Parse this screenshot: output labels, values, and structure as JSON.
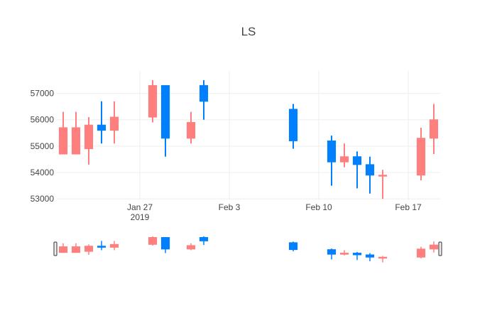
{
  "chart_data": {
    "type": "candlestick",
    "title": "LS",
    "colors": {
      "increasing": "#ff7f7f",
      "decreasing": "#0080ff"
    },
    "x_ticks": [
      {
        "date": "2019-01-27",
        "label": "Jan 27",
        "sublabel": "2019"
      },
      {
        "date": "2019-02-03",
        "label": "Feb 3",
        "sublabel": ""
      },
      {
        "date": "2019-02-10",
        "label": "Feb 10",
        "sublabel": ""
      },
      {
        "date": "2019-02-17",
        "label": "Feb 17",
        "sublabel": ""
      }
    ],
    "y_ticks": [
      53000,
      54000,
      55000,
      56000,
      57000
    ],
    "xlim": [
      "2019-01-21",
      "2019-02-19"
    ],
    "ylim": [
      52950,
      57850
    ],
    "rangeslider": true,
    "series": [
      {
        "date": "2019-01-21",
        "open": 54700,
        "high": 56300,
        "low": 54700,
        "close": 55700
      },
      {
        "date": "2019-01-22",
        "open": 54700,
        "high": 56300,
        "low": 54700,
        "close": 55700
      },
      {
        "date": "2019-01-23",
        "open": 54900,
        "high": 56100,
        "low": 54300,
        "close": 55800
      },
      {
        "date": "2019-01-24",
        "open": 55800,
        "high": 56700,
        "low": 55100,
        "close": 55600
      },
      {
        "date": "2019-01-25",
        "open": 55600,
        "high": 56700,
        "low": 55100,
        "close": 56100
      },
      {
        "date": "2019-01-28",
        "open": 56100,
        "high": 57500,
        "low": 55900,
        "close": 57300
      },
      {
        "date": "2019-01-29",
        "open": 57300,
        "high": 57300,
        "low": 54600,
        "close": 55300
      },
      {
        "date": "2019-01-31",
        "open": 55300,
        "high": 56300,
        "low": 55100,
        "close": 55900
      },
      {
        "date": "2019-02-01",
        "open": 57300,
        "high": 57500,
        "low": 56000,
        "close": 56700
      },
      {
        "date": "2019-02-08",
        "open": 56400,
        "high": 56600,
        "low": 54900,
        "close": 55200
      },
      {
        "date": "2019-02-11",
        "open": 55200,
        "high": 55400,
        "low": 53500,
        "close": 54400
      },
      {
        "date": "2019-02-12",
        "open": 54400,
        "high": 55100,
        "low": 54200,
        "close": 54600
      },
      {
        "date": "2019-02-13",
        "open": 54600,
        "high": 54800,
        "low": 53400,
        "close": 54300
      },
      {
        "date": "2019-02-14",
        "open": 54300,
        "high": 54600,
        "low": 53200,
        "close": 53900
      },
      {
        "date": "2019-02-15",
        "open": 53900,
        "high": 54100,
        "low": 53000,
        "close": 53900
      },
      {
        "date": "2019-02-18",
        "open": 53900,
        "high": 55700,
        "low": 53700,
        "close": 55300
      },
      {
        "date": "2019-02-19",
        "open": 55300,
        "high": 56600,
        "low": 54700,
        "close": 56000
      }
    ]
  }
}
